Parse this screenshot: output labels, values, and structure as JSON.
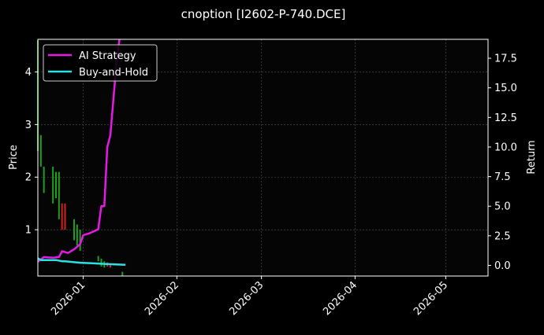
{
  "chart_data": {
    "type": "line",
    "title": "cnoption [I2602-P-740.DCE]",
    "ylabel_left": "Price",
    "ylabel_right": "Return",
    "x_ticks": [
      "2026-01",
      "2026-02",
      "2026-03",
      "2026-04",
      "2026-05"
    ],
    "x_range": [
      "2025-12-17",
      "2026-05-15"
    ],
    "y_left": {
      "ticks": [
        "1",
        "2",
        "3",
        "4"
      ],
      "range": [
        0.12,
        4.62
      ]
    },
    "y_right": {
      "ticks": [
        "0.0",
        "2.5",
        "5.0",
        "7.5",
        "10.0",
        "12.5",
        "15.0",
        "17.5"
      ],
      "range": [
        -0.9,
        19.1
      ]
    },
    "grid": true,
    "legend_placement": "top-left",
    "candles": [
      {
        "date": "2025-12-17",
        "open": 4.6,
        "close": 2.5,
        "color": "#1f9e1f"
      },
      {
        "date": "2025-12-18",
        "open": 2.8,
        "close": 2.2,
        "color": "#1f9e1f"
      },
      {
        "date": "2025-12-19",
        "open": 2.2,
        "close": 1.7,
        "color": "#1f9e1f"
      },
      {
        "date": "2025-12-22",
        "open": 2.2,
        "close": 1.5,
        "color": "#1f9e1f"
      },
      {
        "date": "2025-12-23",
        "open": 2.1,
        "close": 1.6,
        "color": "#1f9e1f"
      },
      {
        "date": "2025-12-24",
        "open": 2.1,
        "close": 1.2,
        "color": "#1f9e1f"
      },
      {
        "date": "2025-12-25",
        "open": 1.0,
        "close": 1.5,
        "color": "#d62020"
      },
      {
        "date": "2025-12-26",
        "open": 1.0,
        "close": 1.5,
        "color": "#d62020"
      },
      {
        "date": "2025-12-29",
        "open": 1.2,
        "close": 0.8,
        "color": "#1f9e1f"
      },
      {
        "date": "2025-12-30",
        "open": 1.1,
        "close": 0.7,
        "color": "#1f9e1f"
      },
      {
        "date": "2025-12-31",
        "open": 1.0,
        "close": 0.6,
        "color": "#1f9e1f"
      },
      {
        "date": "2026-01-06",
        "open": 0.5,
        "close": 0.4,
        "color": "#1f9e1f"
      },
      {
        "date": "2026-01-07",
        "open": 0.45,
        "close": 0.3,
        "color": "#1f9e1f"
      },
      {
        "date": "2026-01-08",
        "open": 0.4,
        "close": 0.28,
        "color": "#1f9e1f"
      },
      {
        "date": "2026-01-09",
        "open": 0.3,
        "close": 0.38,
        "color": "#d62020"
      },
      {
        "date": "2026-01-10",
        "open": 0.28,
        "close": 0.35,
        "color": "#d62020"
      },
      {
        "date": "2026-01-14",
        "open": 0.2,
        "close": 0.12,
        "color": "#1f9e1f"
      }
    ],
    "series": [
      {
        "name": "AI Strategy",
        "color": "#e619e6",
        "points": [
          {
            "x": "2025-12-17",
            "y": 0.3
          },
          {
            "x": "2025-12-19",
            "y": 0.7
          },
          {
            "x": "2025-12-22",
            "y": 0.65
          },
          {
            "x": "2025-12-24",
            "y": 0.7
          },
          {
            "x": "2025-12-25",
            "y": 1.2
          },
          {
            "x": "2025-12-27",
            "y": 1.05
          },
          {
            "x": "2025-12-29",
            "y": 1.35
          },
          {
            "x": "2025-12-31",
            "y": 1.8
          },
          {
            "x": "2026-01-01",
            "y": 2.55
          },
          {
            "x": "2026-01-03",
            "y": 2.7
          },
          {
            "x": "2026-01-06",
            "y": 3.05
          },
          {
            "x": "2026-01-07",
            "y": 5.0
          },
          {
            "x": "2026-01-08",
            "y": 5.0
          },
          {
            "x": "2026-01-09",
            "y": 10.0
          },
          {
            "x": "2026-01-10",
            "y": 11.0
          },
          {
            "x": "2026-01-12",
            "y": 17.0
          },
          {
            "x": "2026-01-13",
            "y": 19.1
          }
        ]
      },
      {
        "name": "Buy-and-Hold",
        "color": "#29e3e3",
        "points": [
          {
            "x": "2025-12-17",
            "y": 0.6
          },
          {
            "x": "2025-12-18",
            "y": 0.45
          },
          {
            "x": "2025-12-23",
            "y": 0.45
          },
          {
            "x": "2025-12-25",
            "y": 0.35
          },
          {
            "x": "2025-12-26",
            "y": 0.35
          },
          {
            "x": "2025-12-31",
            "y": 0.22
          },
          {
            "x": "2026-01-04",
            "y": 0.18
          },
          {
            "x": "2026-01-08",
            "y": 0.12
          },
          {
            "x": "2026-01-15",
            "y": 0.05
          }
        ]
      }
    ]
  }
}
